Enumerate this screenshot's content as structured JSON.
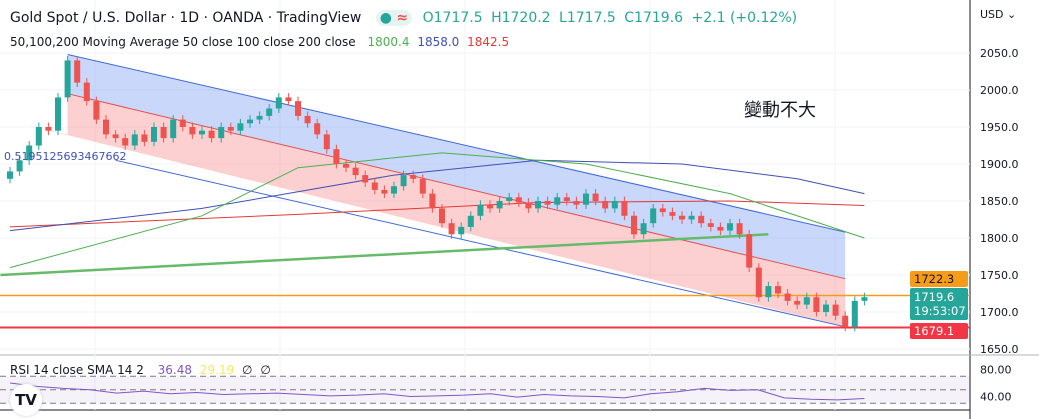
{
  "header": {
    "title": "Gold Spot / U.S. Dollar · 1D · OANDA · TradingView",
    "open": "O1717.5",
    "high": "H1720.2",
    "low": "L1717.5",
    "close": "C1719.6",
    "change": "+2.1 (+0.12%)"
  },
  "ma_legend": {
    "label": "50,100,200 Moving Average 50 close 100 close 200 close",
    "ma50": "1800.4",
    "ma100": "1858.0",
    "ma200": "1842.5"
  },
  "rsi_legend": {
    "label": "RSI 14 close SMA 14 2",
    "rsi": "36.48",
    "sma": "29.19",
    "v1": "∅",
    "v2": "∅"
  },
  "annotation": "變動不大",
  "fib_label": "0.5195125693467662",
  "currency": "USD",
  "price_tags": {
    "orange": "1722.3",
    "last": "1719.6",
    "countdown": "19:53:07",
    "red": "1679.1"
  },
  "colors": {
    "up": "#26a69a",
    "down": "#ef5350",
    "ma50": "#4caf50",
    "ma100": "#3f51b5",
    "ma200": "#e53935",
    "orange": "#f59d1b",
    "red": "#f23645",
    "rsi": "#7e57c2"
  },
  "chart_data": {
    "type": "candlestick",
    "ylim": [
      1630,
      2080
    ],
    "yticks": [
      1650,
      1700,
      1750,
      1800,
      1850,
      1900,
      1950,
      2000,
      2050
    ],
    "closes": [
      1890,
      1905,
      1925,
      1950,
      1945,
      1990,
      2040,
      2010,
      1985,
      1960,
      1940,
      1935,
      1925,
      1940,
      1930,
      1950,
      1935,
      1960,
      1950,
      1940,
      1945,
      1935,
      1950,
      1945,
      1955,
      1960,
      1965,
      1975,
      1990,
      1985,
      1965,
      1955,
      1940,
      1920,
      1900,
      1895,
      1885,
      1875,
      1865,
      1860,
      1870,
      1885,
      1880,
      1860,
      1840,
      1820,
      1805,
      1815,
      1830,
      1845,
      1840,
      1850,
      1855,
      1848,
      1840,
      1850,
      1845,
      1855,
      1850,
      1845,
      1860,
      1850,
      1840,
      1850,
      1830,
      1805,
      1820,
      1840,
      1835,
      1830,
      1825,
      1830,
      1820,
      1815,
      1810,
      1820,
      1805,
      1760,
      1720,
      1735,
      1725,
      1715,
      1710,
      1720,
      1700,
      1710,
      1695,
      1680,
      1715,
      1720
    ],
    "ma50": [
      [
        0,
        1760
      ],
      [
        20,
        1830
      ],
      [
        30,
        1895
      ],
      [
        45,
        1915
      ],
      [
        60,
        1900
      ],
      [
        75,
        1860
      ],
      [
        89,
        1800
      ]
    ],
    "ma100": [
      [
        0,
        1810
      ],
      [
        20,
        1840
      ],
      [
        40,
        1885
      ],
      [
        55,
        1905
      ],
      [
        70,
        1900
      ],
      [
        82,
        1880
      ],
      [
        89,
        1860
      ]
    ],
    "ma200": [
      [
        0,
        1815
      ],
      [
        30,
        1832
      ],
      [
        55,
        1848
      ],
      [
        75,
        1850
      ],
      [
        89,
        1844
      ]
    ],
    "trendline": [
      [
        -1,
        1750
      ],
      [
        79,
        1805
      ]
    ],
    "channel": {
      "upper": [
        [
          6,
          2048
        ],
        [
          87,
          1808
        ]
      ],
      "middle": [
        [
          6,
          1995
        ],
        [
          87,
          1745
        ]
      ],
      "lower": [
        [
          11,
          1905
        ],
        [
          87,
          1680
        ]
      ]
    },
    "hlines": [
      {
        "price": 1722.3,
        "color": "orange"
      },
      {
        "price": 1679.1,
        "color": "red"
      }
    ],
    "rsi": {
      "ylim": [
        20,
        100
      ],
      "yticks": [
        80,
        40
      ],
      "bands": [
        70,
        30
      ],
      "values": [
        60,
        55,
        52,
        50,
        45,
        48,
        44,
        46,
        43,
        44,
        45,
        43,
        41,
        42,
        44,
        40,
        41,
        42,
        44,
        39,
        43,
        41,
        40,
        38,
        44,
        47,
        52,
        49,
        50,
        38,
        36,
        35,
        37
      ]
    }
  }
}
